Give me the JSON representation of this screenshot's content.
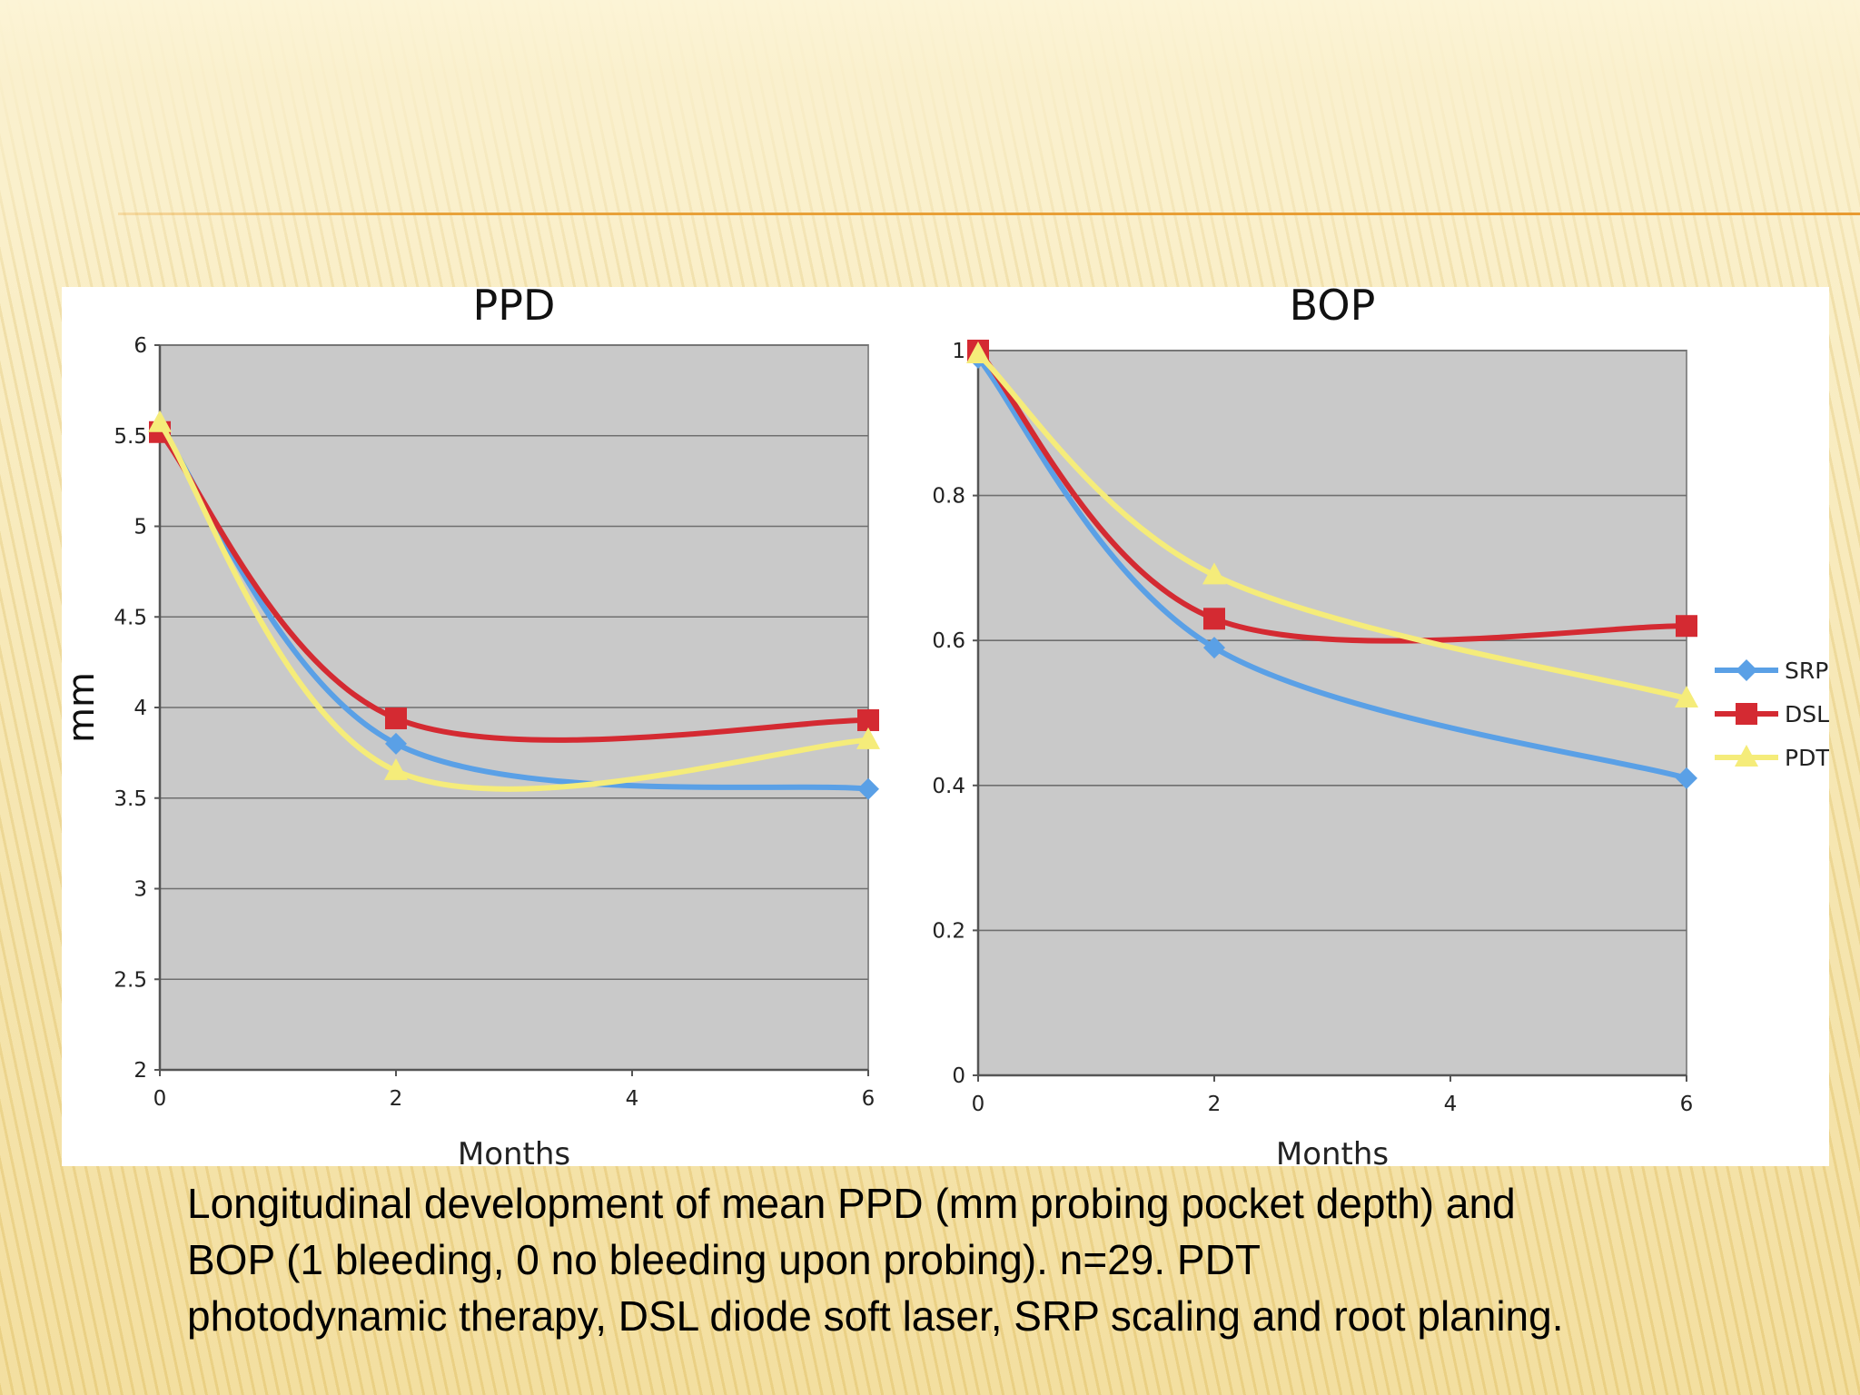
{
  "caption": {
    "line1": "Longitudinal development of mean PPD (mm probing pocket depth) and",
    "line2": "BOP (1 bleeding, 0 no bleeding upon probing). n=29. PDT",
    "line3": "photodynamic therapy, DSL diode soft laser, SRP scaling and root planing."
  },
  "legend": {
    "placement": "right",
    "items": [
      {
        "name": "SRP",
        "color": "#5aa0e6",
        "marker": "diamond"
      },
      {
        "name": "DSL",
        "color": "#d42a32",
        "marker": "square"
      },
      {
        "name": "PDT",
        "color": "#f5ec7a",
        "marker": "triangle"
      }
    ]
  },
  "chart_data": [
    {
      "type": "line",
      "title": "PPD",
      "xlabel": "Months",
      "ylabel": "mm",
      "x": [
        0,
        2,
        6
      ],
      "xticks": [
        "0",
        "2",
        "4",
        "6"
      ],
      "xlim": [
        0,
        6
      ],
      "ylim": [
        2,
        6
      ],
      "yticks": [
        "2",
        "2.5",
        "3",
        "3.5",
        "4",
        "4.5",
        "5",
        "5.5",
        "6"
      ],
      "grid": true,
      "plot_background": "#c9c9c9",
      "series": [
        {
          "name": "SRP",
          "values": [
            5.55,
            3.8,
            3.55
          ]
        },
        {
          "name": "DSL",
          "values": [
            5.52,
            3.94,
            3.93
          ]
        },
        {
          "name": "PDT",
          "values": [
            5.57,
            3.65,
            3.82
          ]
        }
      ]
    },
    {
      "type": "line",
      "title": "BOP",
      "xlabel": "Months",
      "ylabel": "",
      "x": [
        0,
        2,
        6
      ],
      "xticks": [
        "0",
        "2",
        "4",
        "6"
      ],
      "xlim": [
        0,
        6
      ],
      "ylim": [
        0,
        1
      ],
      "yticks": [
        "0",
        "0.2",
        "0.4",
        "0.6",
        "0.8",
        "1"
      ],
      "grid": true,
      "plot_background": "#c9c9c9",
      "series": [
        {
          "name": "SRP",
          "values": [
            0.99,
            0.59,
            0.41
          ]
        },
        {
          "name": "DSL",
          "values": [
            1.0,
            0.63,
            0.62
          ]
        },
        {
          "name": "PDT",
          "values": [
            0.995,
            0.69,
            0.52
          ]
        }
      ]
    }
  ]
}
